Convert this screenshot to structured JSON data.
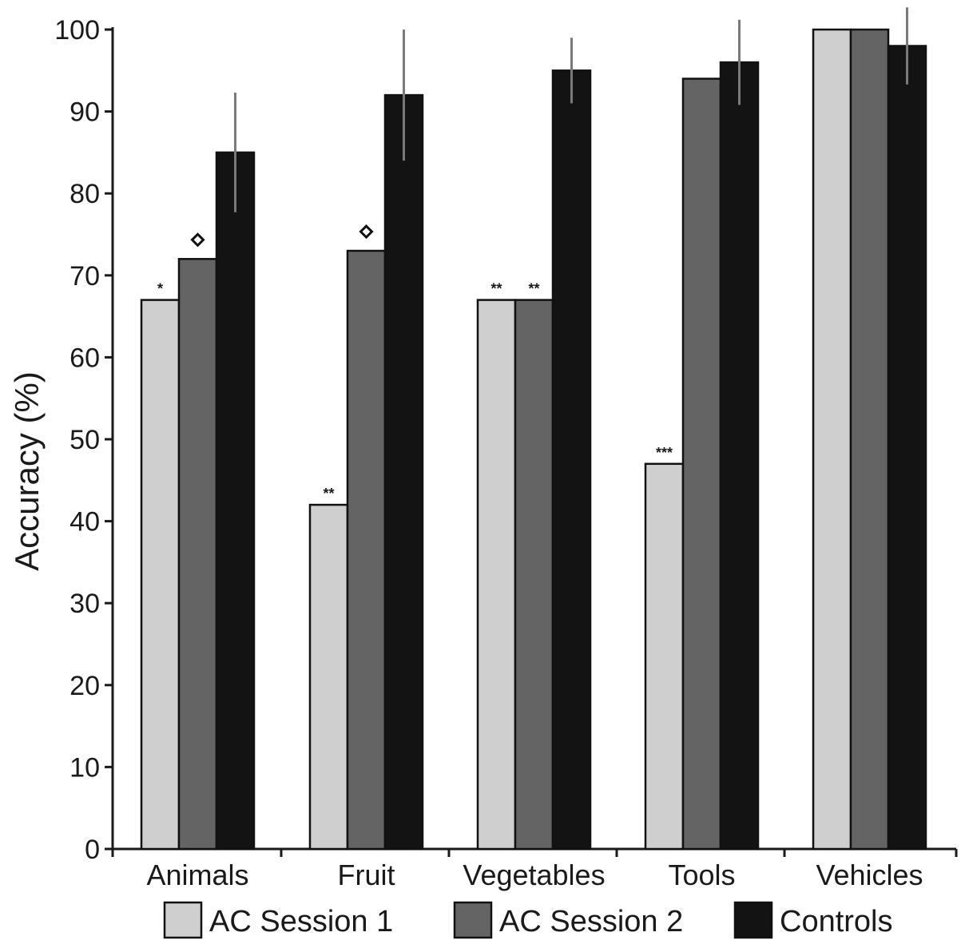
{
  "chart_data": {
    "type": "bar",
    "title": "",
    "xlabel": "",
    "ylabel": "Accuracy (%)",
    "ylim": [
      0,
      100
    ],
    "yticks": [
      "0",
      "10",
      "20",
      "30",
      "40",
      "50",
      "60",
      "70",
      "80",
      "90",
      "100"
    ],
    "categories": [
      "Animals",
      "Fruit",
      "Vegetables",
      "Tools",
      "Vehicles"
    ],
    "series": [
      {
        "name": "AC Session 1",
        "color": "#cfcfcf",
        "values": [
          67,
          42,
          67,
          47,
          100
        ],
        "annotations": [
          "*",
          "**",
          "**",
          "***",
          ""
        ]
      },
      {
        "name": "AC Session 2",
        "color": "#646464",
        "values": [
          72,
          73,
          67,
          94,
          100
        ],
        "annotations": [
          "◇",
          "◇",
          "**",
          "",
          ""
        ]
      },
      {
        "name": "Controls",
        "color": "#131313",
        "values": [
          85,
          92,
          95,
          96,
          98
        ],
        "error": [
          7.3,
          8,
          4,
          5.2,
          4.7
        ],
        "annotations": [
          "",
          "",
          "",
          "",
          ""
        ]
      }
    ],
    "legend": "bottom",
    "grid": false
  }
}
